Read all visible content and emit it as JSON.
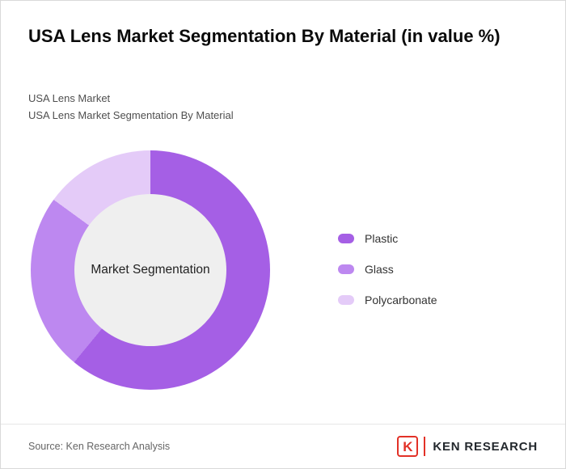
{
  "title": "USA Lens Market Segmentation By Material (in value %)",
  "subtitles": {
    "line1": "USA Lens Market",
    "line2": "USA Lens Market Segmentation By Material"
  },
  "chart_data": {
    "type": "pie",
    "donut": true,
    "title": "USA Lens Market Segmentation By Material (in value %)",
    "center_label": "Market Segmentation",
    "categories": [
      "Plastic",
      "Glass",
      "Polycarbonate"
    ],
    "values": [
      61,
      24,
      15
    ],
    "colors": [
      "#a55fe5",
      "#bd88f0",
      "#e4cbf8"
    ],
    "center_circle_color": "#efefef",
    "legend_position": "right",
    "data_labels": false
  },
  "footer": {
    "source": "Source: Ken Research Analysis",
    "logo_letter": "K",
    "brand_name": "KEN RESEARCH",
    "brand_color": "#e23127"
  }
}
